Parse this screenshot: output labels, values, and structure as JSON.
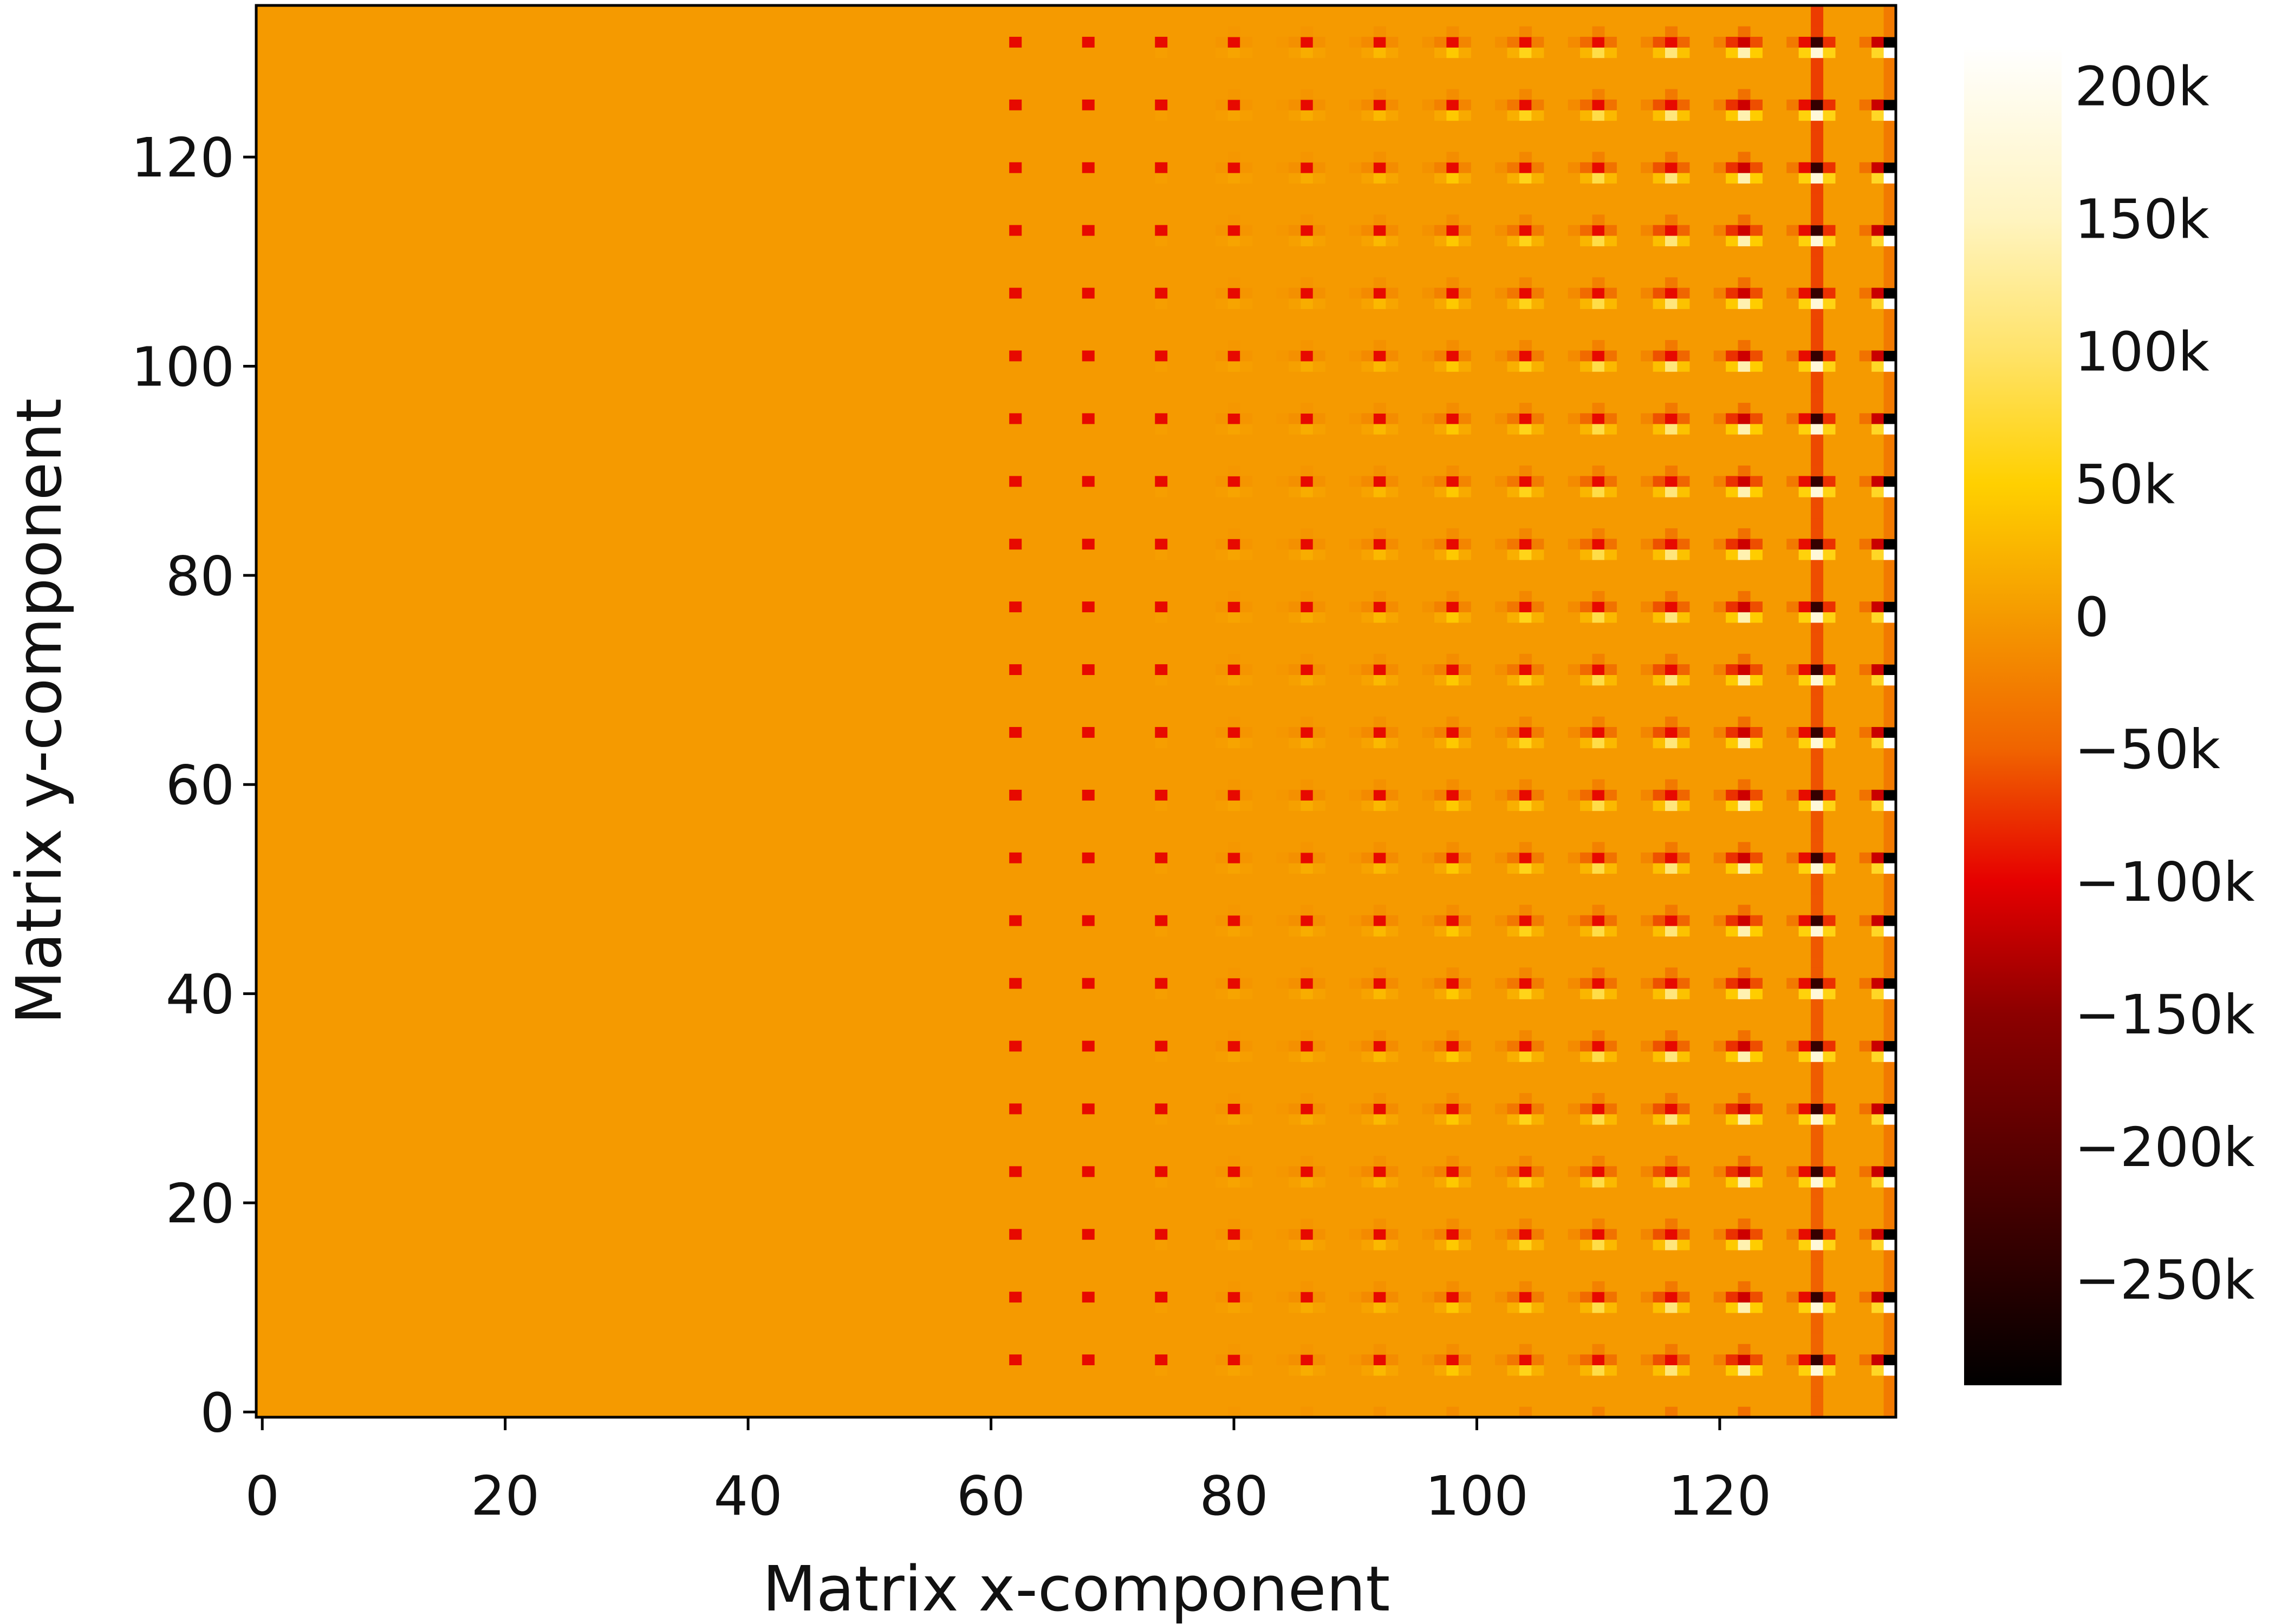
{
  "chart_data": {
    "type": "heatmap",
    "title": "",
    "xlabel": "Matrix x-component",
    "ylabel": "Matrix y-component",
    "xlim": [
      -0.5,
      134.5
    ],
    "ylim": [
      -0.5,
      134.5
    ],
    "x_ticks": [
      0,
      20,
      40,
      60,
      80,
      100,
      120
    ],
    "y_ticks": [
      0,
      20,
      40,
      60,
      80,
      100,
      120
    ],
    "x_tick_labels": [
      "0",
      "20",
      "40",
      "60",
      "80",
      "100",
      "120"
    ],
    "y_tick_labels": [
      "0",
      "20",
      "40",
      "60",
      "80",
      "100",
      "120"
    ],
    "grid": false,
    "colormap": {
      "name": "afmhot",
      "vmin": -290000,
      "vmax": 215000,
      "stops": [
        {
          "value": -290000,
          "color": "#000000"
        },
        {
          "value": -200000,
          "color": "#5a0000"
        },
        {
          "value": -150000,
          "color": "#8c0000"
        },
        {
          "value": -100000,
          "color": "#e60000"
        },
        {
          "value": -50000,
          "color": "#f06400"
        },
        {
          "value": 0,
          "color": "#f59a00"
        },
        {
          "value": 50000,
          "color": "#ffd000"
        },
        {
          "value": 100000,
          "color": "#ffe36a"
        },
        {
          "value": 150000,
          "color": "#fff4c0"
        },
        {
          "value": 215000,
          "color": "#ffffff"
        }
      ]
    },
    "colorbar": {
      "ticks": [
        200000,
        150000,
        100000,
        50000,
        0,
        -50000,
        -100000,
        -150000,
        -200000,
        -250000
      ],
      "tick_labels": [
        "200k",
        "150k",
        "100k",
        "50k",
        "0",
        "−50k",
        "−100k",
        "−150k",
        "−200k",
        "−250k"
      ],
      "placement": "right"
    },
    "grid_size": [
      135,
      135
    ],
    "background_value": 0,
    "pattern_description_values": {
      "active_column_period": 6,
      "active_row_period": 6,
      "strongest_column": 134,
      "strongest_value": -290000,
      "peak_positive_value": 215000
    }
  }
}
